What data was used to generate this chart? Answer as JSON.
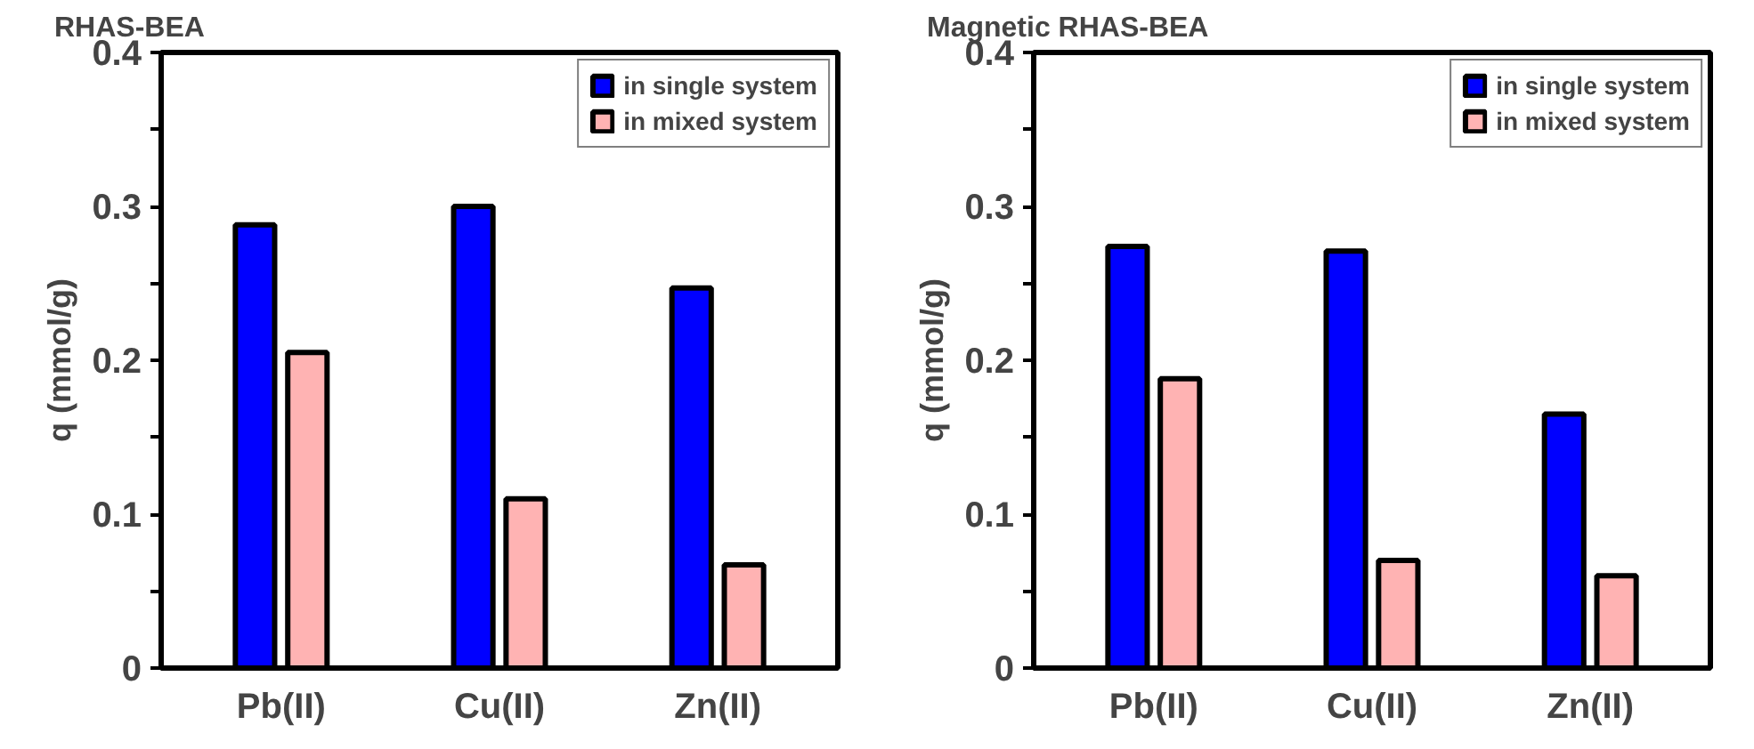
{
  "chart_data": [
    {
      "type": "bar",
      "title": "RHAS-BEA",
      "ylabel": "q (mmol/g)",
      "categories": [
        "Pb(II)",
        "Cu(II)",
        "Zn(II)"
      ],
      "series": [
        {
          "name": "in single system",
          "color": "#0000ff",
          "values": [
            0.288,
            0.3,
            0.247
          ]
        },
        {
          "name": "in mixed system",
          "color": "#ffb3b3",
          "values": [
            0.205,
            0.11,
            0.067
          ]
        }
      ],
      "ylim": [
        0,
        0.4
      ],
      "yticks": [
        0,
        {
          "value": 0.05,
          "label": null
        },
        0.1,
        {
          "value": 0.15,
          "label": null
        },
        0.2,
        {
          "value": 0.25,
          "label": null
        },
        0.3,
        {
          "value": 0.35,
          "label": null
        },
        0.4
      ],
      "grid": false,
      "legend": "top right"
    },
    {
      "type": "bar",
      "title": "Magnetic RHAS-BEA",
      "ylabel": "q (mmol/g)",
      "categories": [
        "Pb(II)",
        "Cu(II)",
        "Zn(II)"
      ],
      "series": [
        {
          "name": "in single system",
          "color": "#0000ff",
          "values": [
            0.274,
            0.271,
            0.165
          ]
        },
        {
          "name": "in mixed system",
          "color": "#ffb3b3",
          "values": [
            0.188,
            0.07,
            0.06
          ]
        }
      ],
      "ylim": [
        0,
        0.4
      ],
      "yticks": [
        0,
        {
          "value": 0.05,
          "label": null
        },
        0.1,
        {
          "value": 0.15,
          "label": null
        },
        0.2,
        {
          "value": 0.25,
          "label": null
        },
        0.3,
        {
          "value": 0.35,
          "label": null
        },
        0.4
      ],
      "grid": false,
      "legend": "top right"
    }
  ]
}
